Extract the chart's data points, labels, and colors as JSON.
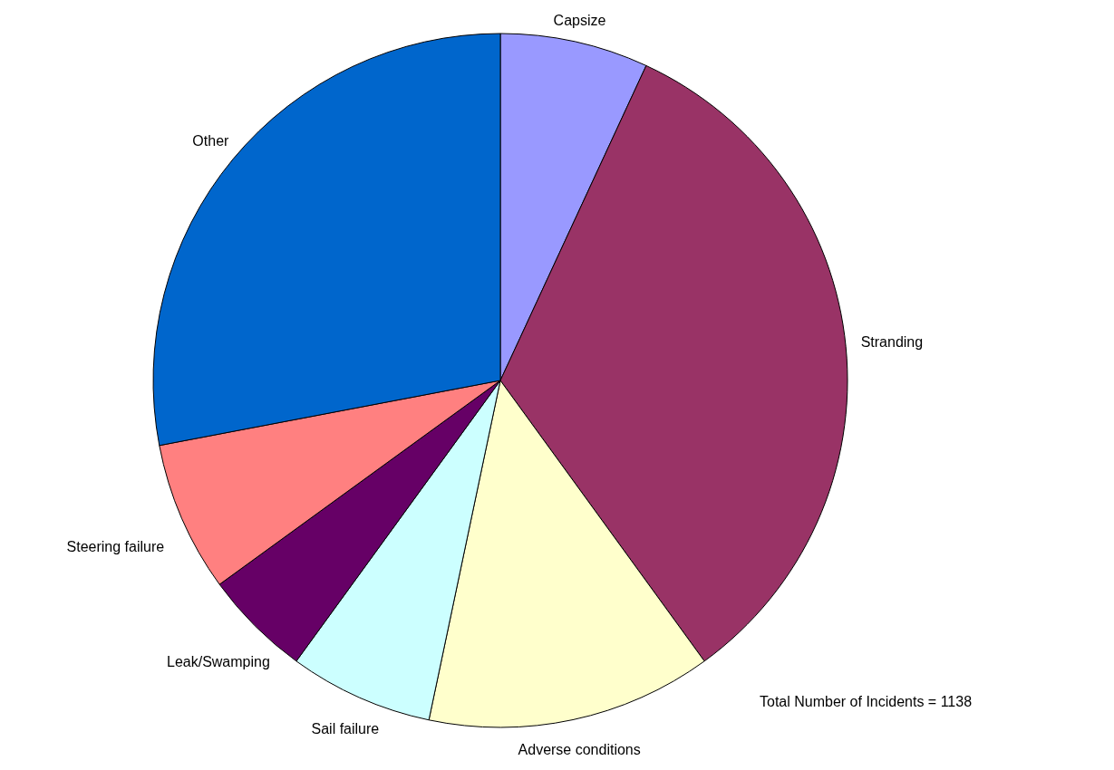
{
  "chart_data": {
    "type": "pie",
    "categories": [
      "Capsize",
      "Stranding",
      "Adverse conditions",
      "Sail failure",
      "Leak/Swamping",
      "Steering failure",
      "Other"
    ],
    "values": [
      6.9,
      33.1,
      13.3,
      6.7,
      5.0,
      7.0,
      28.0
    ],
    "colors": [
      "#9999ff",
      "#993366",
      "#ffffcc",
      "#ccffff",
      "#660066",
      "#ff8080",
      "#0066cc"
    ],
    "annotations": [
      "Total Number of Incidents = 1138"
    ]
  }
}
